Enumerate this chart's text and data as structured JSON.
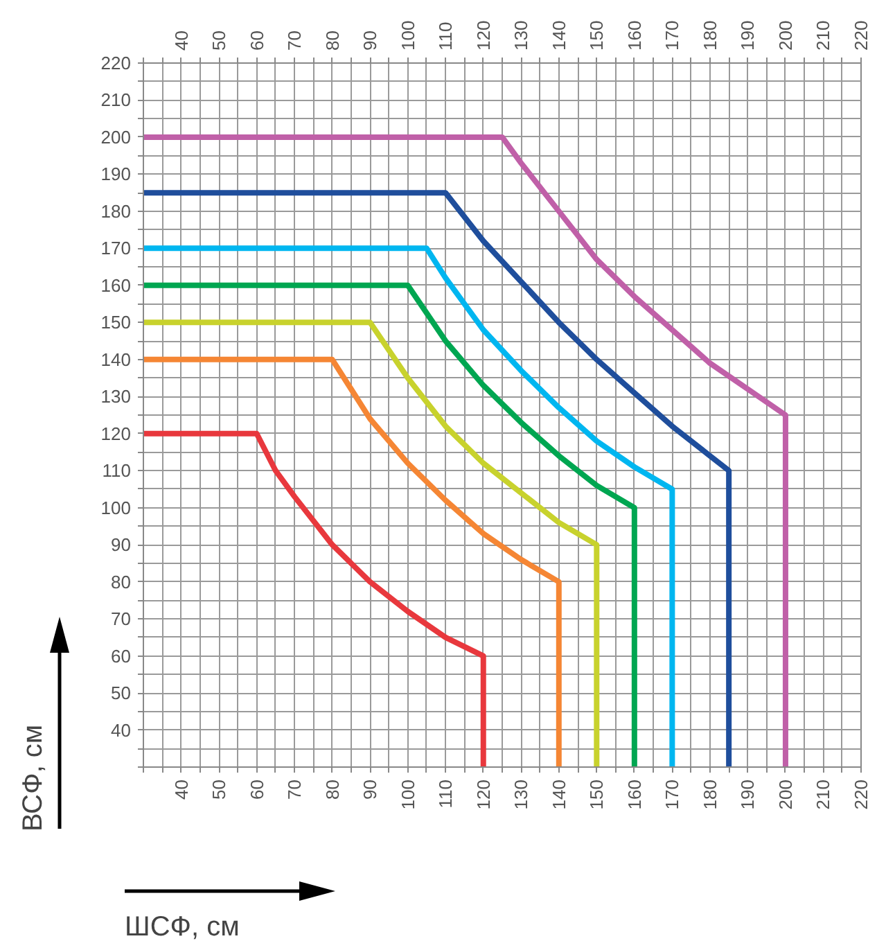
{
  "chart_data": {
    "type": "line",
    "xlabel": "ШСФ, см",
    "ylabel": "ВСФ, см",
    "xlim": [
      30,
      220
    ],
    "ylim": [
      30,
      220
    ],
    "x2lim": [
      30,
      220
    ],
    "xticks": [
      {
        "value": 30,
        "label": null
      },
      {
        "value": 35,
        "label": null
      },
      40,
      {
        "value": 45,
        "label": null
      },
      50,
      {
        "value": 55,
        "label": null
      },
      60,
      {
        "value": 65,
        "label": null
      },
      70,
      {
        "value": 75,
        "label": null
      },
      80,
      {
        "value": 85,
        "label": null
      },
      90,
      {
        "value": 95,
        "label": null
      },
      100,
      {
        "value": 105,
        "label": null
      },
      110,
      {
        "value": 115,
        "label": null
      },
      120,
      {
        "value": 125,
        "label": null
      },
      130,
      {
        "value": 135,
        "label": null
      },
      140,
      {
        "value": 145,
        "label": null
      },
      150,
      {
        "value": 155,
        "label": null
      },
      160,
      {
        "value": 165,
        "label": null
      },
      170,
      {
        "value": 175,
        "label": null
      },
      180,
      {
        "value": 185,
        "label": null
      },
      190,
      {
        "value": 195,
        "label": null
      },
      200,
      {
        "value": 205,
        "label": null
      },
      210,
      {
        "value": 215,
        "label": null
      },
      220
    ],
    "x2ticks": [
      {
        "value": 30,
        "label": null
      },
      {
        "value": 35,
        "label": null
      },
      40,
      {
        "value": 45,
        "label": null
      },
      50,
      {
        "value": 55,
        "label": null
      },
      60,
      {
        "value": 65,
        "label": null
      },
      70,
      {
        "value": 75,
        "label": null
      },
      80,
      {
        "value": 85,
        "label": null
      },
      90,
      {
        "value": 95,
        "label": null
      },
      100,
      {
        "value": 105,
        "label": null
      },
      110,
      {
        "value": 115,
        "label": null
      },
      120,
      {
        "value": 125,
        "label": null
      },
      130,
      {
        "value": 135,
        "label": null
      },
      140,
      {
        "value": 145,
        "label": null
      },
      150,
      {
        "value": 155,
        "label": null
      },
      160,
      {
        "value": 165,
        "label": null
      },
      170,
      {
        "value": 175,
        "label": null
      },
      180,
      {
        "value": 185,
        "label": null
      },
      190,
      {
        "value": 195,
        "label": null
      },
      200,
      {
        "value": 205,
        "label": null
      },
      210,
      {
        "value": 215,
        "label": null
      },
      220
    ],
    "yticks": [
      {
        "value": 30,
        "label": null
      },
      {
        "value": 35,
        "label": null
      },
      40,
      {
        "value": 45,
        "label": null
      },
      50,
      {
        "value": 55,
        "label": null
      },
      60,
      {
        "value": 65,
        "label": null
      },
      70,
      {
        "value": 75,
        "label": null
      },
      80,
      {
        "value": 85,
        "label": null
      },
      90,
      {
        "value": 95,
        "label": null
      },
      100,
      {
        "value": 105,
        "label": null
      },
      110,
      {
        "value": 115,
        "label": null
      },
      120,
      {
        "value": 125,
        "label": null
      },
      130,
      {
        "value": 135,
        "label": null
      },
      140,
      {
        "value": 145,
        "label": null
      },
      150,
      {
        "value": 155,
        "label": null
      },
      160,
      {
        "value": 165,
        "label": null
      },
      170,
      {
        "value": 175,
        "label": null
      },
      180,
      {
        "value": 185,
        "label": null
      },
      190,
      {
        "value": 195,
        "label": null
      },
      200,
      {
        "value": 205,
        "label": null
      },
      210,
      {
        "value": 215,
        "label": null
      },
      220
    ],
    "grid": true,
    "series": [
      {
        "color": "#e8383d",
        "x": [
          30,
          60,
          65,
          70,
          80,
          90,
          100,
          110,
          120,
          120
        ],
        "values": [
          120,
          120,
          110,
          103,
          90,
          80,
          72,
          65,
          60,
          30
        ]
      },
      {
        "color": "#f58634",
        "x": [
          30,
          80,
          90,
          100,
          110,
          120,
          130,
          140,
          140
        ],
        "values": [
          140,
          140,
          124,
          112,
          102,
          93,
          86,
          80,
          30
        ]
      },
      {
        "color": "#c8d22d",
        "x": [
          30,
          90,
          100,
          110,
          120,
          130,
          140,
          150,
          150
        ],
        "values": [
          150,
          150,
          135,
          122,
          112,
          104,
          96,
          90,
          30
        ]
      },
      {
        "color": "#00a651",
        "x": [
          30,
          100,
          110,
          120,
          130,
          140,
          150,
          160,
          160
        ],
        "values": [
          160,
          160,
          145,
          133,
          123,
          114,
          106,
          100,
          30
        ]
      },
      {
        "color": "#00b6f0",
        "x": [
          30,
          105,
          110,
          120,
          130,
          140,
          150,
          160,
          170,
          170
        ],
        "values": [
          170,
          170,
          162,
          148,
          137,
          127,
          118,
          111,
          105,
          30
        ]
      },
      {
        "color": "#1f4e9c",
        "x": [
          30,
          110,
          120,
          130,
          140,
          150,
          160,
          170,
          180,
          185,
          185
        ],
        "values": [
          185,
          185,
          172,
          161,
          150,
          140,
          131,
          122,
          114,
          110,
          30
        ]
      },
      {
        "color": "#c060a8",
        "x": [
          30,
          125,
          130,
          140,
          150,
          160,
          170,
          180,
          190,
          200,
          200
        ],
        "values": [
          200,
          200,
          193,
          180,
          167,
          157,
          148,
          139,
          132,
          125,
          30
        ]
      }
    ]
  }
}
